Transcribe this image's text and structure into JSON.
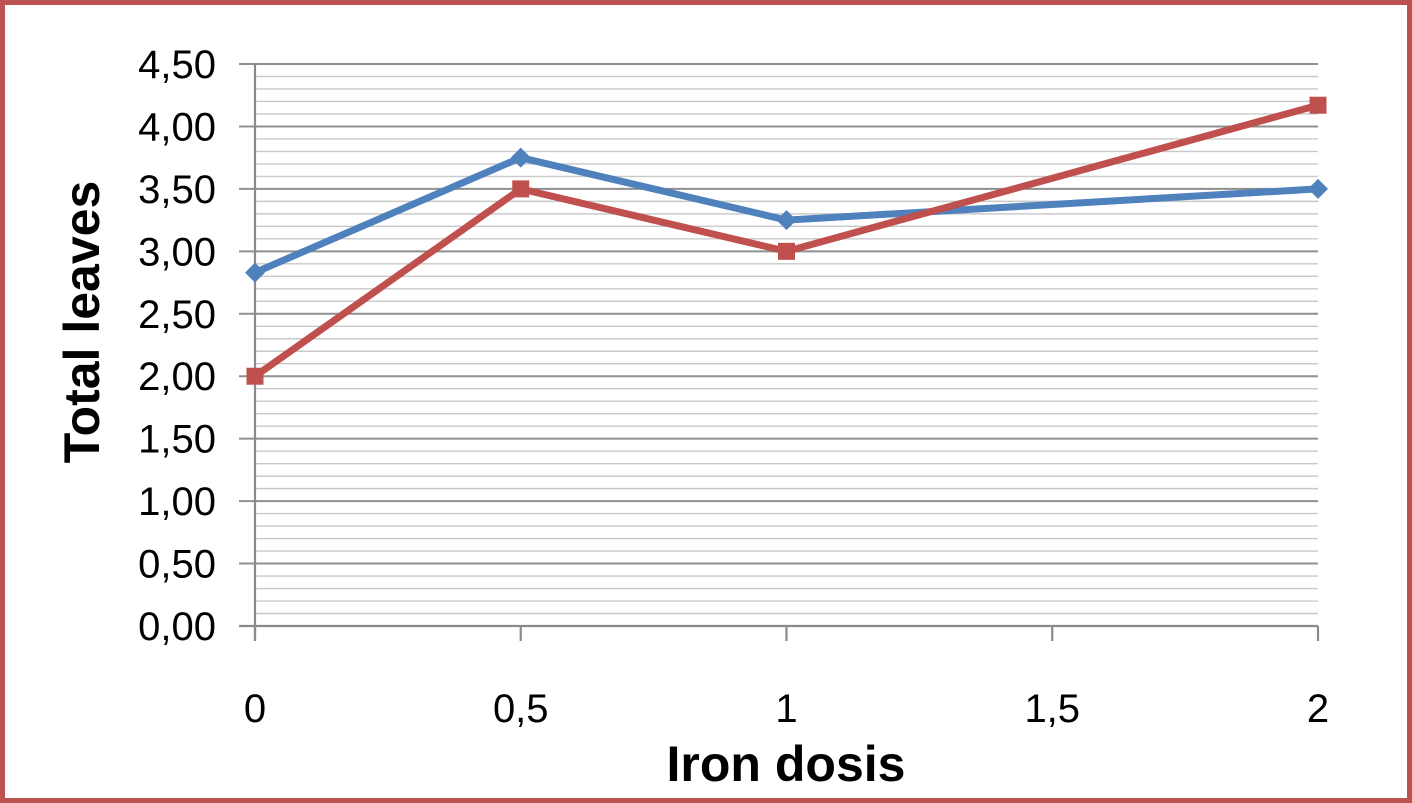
{
  "window": {
    "background": "#ffffff",
    "frame_border_color": "#bc5351"
  },
  "chart_data": {
    "type": "line",
    "title": "",
    "xlabel": "Iron dosis",
    "ylabel": "Total leaves",
    "x": [
      0,
      0.5,
      1,
      2
    ],
    "series": [
      {
        "name": "blue-series",
        "marker": "diamond",
        "color": "#4f81bd",
        "values": [
          2.83,
          3.75,
          3.25,
          3.5
        ]
      },
      {
        "name": "red-series",
        "marker": "square",
        "color": "#c0504d",
        "values": [
          2.0,
          3.5,
          3.0,
          4.17
        ]
      }
    ],
    "xlim": [
      0,
      2
    ],
    "ylim": [
      0,
      4.5
    ],
    "x_ticks": {
      "values": [
        0,
        0.5,
        1,
        1.5,
        2
      ],
      "labels": [
        "0",
        "0,5",
        "1",
        "1,5",
        "2"
      ]
    },
    "y_ticks": {
      "step_major": 0.5,
      "step_minor": 0.1,
      "labels": [
        "0,00",
        "0,50",
        "1,00",
        "1,50",
        "2,00",
        "2,50",
        "3,00",
        "3,50",
        "4,00",
        "4,50"
      ]
    },
    "grid": {
      "horizontal_major": true,
      "horizontal_minor": true,
      "vertical": false
    },
    "legend": "none",
    "colors": {
      "axis": "#8a8a8a",
      "major_grid": "#8f8f8f",
      "minor_grid": "#c9c9c9",
      "text": "#000000"
    }
  }
}
